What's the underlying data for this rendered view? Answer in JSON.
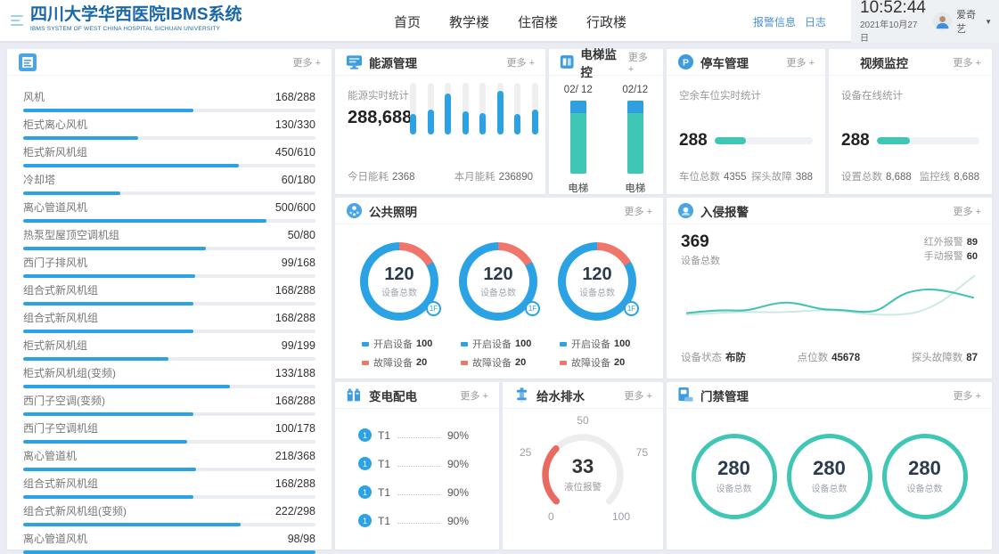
{
  "header": {
    "logo_title": "四川大学华西医院IBMS系统",
    "logo_subtitle": "IBMS SYSTEM OF WEST CHINA HOSPITAL SICHUAN UNIVERSITY",
    "nav": [
      "首页",
      "教学楼",
      "住宿楼",
      "行政楼"
    ],
    "alarm_link": "报警信息",
    "log_link": "日志",
    "time": "10:52:44",
    "date": "2021年10月27日",
    "user": "爱奇艺"
  },
  "panels": {
    "device_list": {
      "more": "更多 +",
      "items": [
        {
          "label": "风机",
          "value": "168/288"
        },
        {
          "label": "柜式离心风机",
          "value": "130/330"
        },
        {
          "label": "柜式新风机组",
          "value": "450/610"
        },
        {
          "label": "冷却塔",
          "value": "60/180"
        },
        {
          "label": "离心管道风机",
          "value": "500/600"
        },
        {
          "label": "热泵型屋顶空调机组",
          "value": "50/80"
        },
        {
          "label": "西门子排风机",
          "value": "99/168"
        },
        {
          "label": "组合式新风机组",
          "value": "168/288"
        },
        {
          "label": "组合式新风机组",
          "value": "168/288"
        },
        {
          "label": "柜式新风机组",
          "value": "99/199"
        },
        {
          "label": "柜式新风机组(变频)",
          "value": "133/188"
        },
        {
          "label": "西门子空调(变频)",
          "value": "168/288"
        },
        {
          "label": "西门子空调机组",
          "value": "100/178"
        },
        {
          "label": "离心管道机",
          "value": "218/368"
        },
        {
          "label": "组合式新风机组",
          "value": "168/288"
        },
        {
          "label": "组合式新风机组(变频)",
          "value": "222/298"
        },
        {
          "label": "离心管道风机",
          "value": "98/98"
        }
      ]
    },
    "energy": {
      "title": "能源管理",
      "more": "更多 +",
      "stat_label": "能源实时统计",
      "total": "288,688",
      "bars": [
        40,
        48,
        80,
        45,
        42,
        85,
        40,
        48
      ],
      "today_label": "今日能耗",
      "today_value": "2368",
      "month_label": "本月能耗",
      "month_value": "236890"
    },
    "elevator": {
      "title": "电梯监控",
      "more": "更多 +",
      "items": [
        {
          "ratio": "02/ 12",
          "label": "电梯"
        },
        {
          "ratio": "02/12",
          "label": "电梯"
        }
      ]
    },
    "parking": {
      "title": "停车管理",
      "more": "更多 +",
      "stat_label": "空余车位实时统计",
      "value": "288",
      "bar_pct": 32,
      "left_label": "车位总数",
      "left_value": "4355",
      "right_label": "探头故障",
      "right_value": "388"
    },
    "video": {
      "title": "视频监控",
      "more": "更多 +",
      "stat_label": "设备在线统计",
      "value": "288",
      "bar_pct": 32,
      "left_label": "设置总数",
      "left_value": "8,688",
      "right_label": "监控线",
      "right_value": "8,688"
    },
    "lighting": {
      "title": "公共照明",
      "more": "更多 +",
      "donuts": [
        {
          "total": "120",
          "total_label": "设备总数",
          "floor": "1F",
          "open_label": "开启设备",
          "open_value": "100",
          "fault_label": "故障设备",
          "fault_value": "20"
        },
        {
          "total": "120",
          "total_label": "设备总数",
          "floor": "1F",
          "open_label": "开启设备",
          "open_value": "100",
          "fault_label": "故障设备",
          "fault_value": "20"
        },
        {
          "total": "120",
          "total_label": "设备总数",
          "floor": "1F",
          "open_label": "开启设备",
          "open_value": "100",
          "fault_label": "故障设备",
          "fault_value": "20"
        }
      ]
    },
    "intrusion": {
      "title": "入侵报警",
      "more": "更多 +",
      "total": "369",
      "total_label": "设备总数",
      "infrared_label": "红外报警",
      "infrared_value": "89",
      "manual_label": "手动报警",
      "manual_value": "60",
      "status_label": "设备状态",
      "status_value": "布防",
      "points_label": "点位数",
      "points_value": "45678",
      "probe_label": "探头故障数",
      "probe_value": "87"
    },
    "power": {
      "title": "变电配电",
      "more": "更多 +",
      "rows": [
        {
          "badge": "1",
          "label": "T1",
          "value": "90%"
        },
        {
          "badge": "1",
          "label": "T1",
          "value": "90%"
        },
        {
          "badge": "1",
          "label": "T1",
          "value": "90%"
        },
        {
          "badge": "1",
          "label": "T1",
          "value": "90%"
        }
      ]
    },
    "water": {
      "title": "给水排水",
      "more": "更多 +",
      "gauge": {
        "value": "33",
        "label": "液位报警",
        "ticks": [
          "0",
          "25",
          "50",
          "75",
          "100"
        ],
        "min": 0,
        "max": 100
      }
    },
    "access": {
      "title": "门禁管理",
      "more": "更多 +",
      "circles": [
        {
          "value": "280",
          "label": "设备总数"
        },
        {
          "value": "280",
          "label": "设备总数"
        },
        {
          "value": "280",
          "label": "设备总数"
        }
      ]
    }
  },
  "colors": {
    "accent_blue": "#2aa2e4",
    "teal": "#3fc6b4",
    "salmon": "#f0756b",
    "link_blue": "#4a90d9",
    "logo_blue": "#1a67a9"
  },
  "chart_data": [
    {
      "type": "bar",
      "title": "能源实时统计",
      "values": [
        40,
        48,
        80,
        45,
        42,
        85,
        40,
        48
      ],
      "note": "8 unlabeled bars, heights as % of track, total shown 288,688"
    },
    {
      "type": "bar",
      "title": "电梯监控",
      "categories": [
        "电梯",
        "电梯"
      ],
      "values": [
        "02/12",
        "02/12"
      ],
      "note": "2 of 12 shown as blue cap on teal column"
    },
    {
      "type": "pie",
      "title": "公共照明 1F (x3 donuts)",
      "labels": [
        "开启设备",
        "故障设备"
      ],
      "values": [
        100,
        20
      ],
      "center_total": 120
    },
    {
      "type": "line",
      "title": "入侵报警趋势",
      "series": [
        {
          "name": "series-dark",
          "values": [
            62,
            60,
            59,
            50,
            58,
            60,
            44,
            36,
            38,
            44
          ]
        },
        {
          "name": "series-light",
          "values": [
            64,
            62,
            61,
            60,
            64,
            62,
            52,
            34,
            18
          ]
        }
      ],
      "note": "unlabeled sparkline, values estimated"
    },
    {
      "type": "gauge",
      "title": "给水排水 液位报警",
      "value": 33,
      "min": 0,
      "max": 100,
      "ticks": [
        0,
        25,
        50,
        75,
        100
      ]
    }
  ]
}
